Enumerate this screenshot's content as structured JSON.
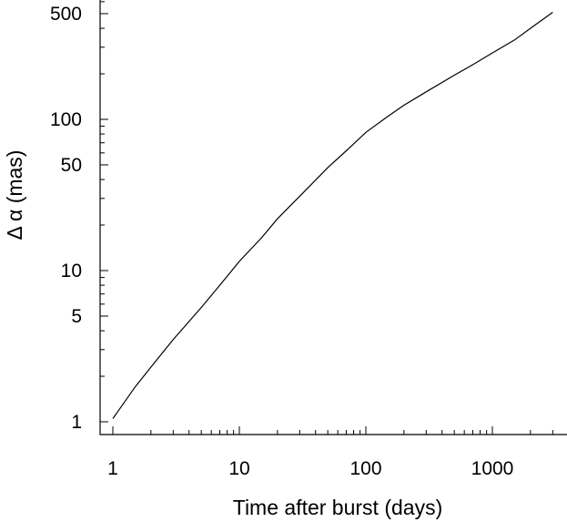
{
  "chart_data": {
    "type": "line",
    "title": "",
    "xlabel": "Time after burst (days)",
    "ylabel": "Δ α (mas)",
    "x_scale": "log",
    "y_scale": "log",
    "xlim": [
      0.85,
      3000
    ],
    "ylim": [
      0.9,
      600
    ],
    "grid": false,
    "x_ticks": [
      {
        "value": 1,
        "label": "1"
      },
      {
        "value": 10,
        "label": "10"
      },
      {
        "value": 100,
        "label": "100"
      },
      {
        "value": 1000,
        "label": "1000"
      }
    ],
    "y_ticks": [
      {
        "value": 1,
        "label": "1"
      },
      {
        "value": 5,
        "label": "5"
      },
      {
        "value": 10,
        "label": "10"
      },
      {
        "value": 50,
        "label": "50"
      },
      {
        "value": 100,
        "label": "100"
      },
      {
        "value": 500,
        "label": "500"
      }
    ],
    "series": [
      {
        "points": [
          [
            1,
            1.05
          ],
          [
            1.5,
            1.7
          ],
          [
            2,
            2.3
          ],
          [
            3,
            3.5
          ],
          [
            5,
            5.7
          ],
          [
            7,
            8
          ],
          [
            10,
            11.5
          ],
          [
            15,
            16.5
          ],
          [
            20,
            22
          ],
          [
            30,
            31
          ],
          [
            50,
            48
          ],
          [
            70,
            62
          ],
          [
            100,
            82
          ],
          [
            150,
            105
          ],
          [
            200,
            124
          ],
          [
            300,
            152
          ],
          [
            500,
            196
          ],
          [
            700,
            230
          ],
          [
            1000,
            275
          ],
          [
            1500,
            335
          ],
          [
            2000,
            400
          ],
          [
            3000,
            510
          ]
        ]
      }
    ]
  }
}
